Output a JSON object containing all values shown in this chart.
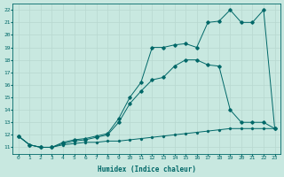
{
  "title": "",
  "xlabel": "Humidex (Indice chaleur)",
  "ylabel": "",
  "background_color": "#c8e8e0",
  "grid_color": "#b8d8d0",
  "line_color": "#006868",
  "xlim": [
    -0.5,
    23.5
  ],
  "ylim": [
    10.5,
    22.5
  ],
  "xticks": [
    0,
    1,
    2,
    3,
    4,
    5,
    6,
    7,
    8,
    9,
    10,
    11,
    12,
    13,
    14,
    15,
    16,
    17,
    18,
    19,
    20,
    21,
    22,
    23
  ],
  "yticks": [
    11,
    12,
    13,
    14,
    15,
    16,
    17,
    18,
    19,
    20,
    21,
    22
  ],
  "series1_x": [
    0,
    1,
    2,
    3,
    4,
    5,
    6,
    7,
    8,
    9,
    10,
    11,
    12,
    13,
    14,
    15,
    16,
    17,
    18,
    19,
    20,
    21,
    22,
    23
  ],
  "series1_y": [
    11.9,
    11.2,
    11.0,
    11.0,
    11.2,
    11.3,
    11.4,
    11.4,
    11.5,
    11.5,
    11.6,
    11.7,
    11.8,
    11.9,
    12.0,
    12.1,
    12.2,
    12.3,
    12.4,
    12.5,
    12.5,
    12.5,
    12.5,
    12.5
  ],
  "series2_x": [
    0,
    1,
    2,
    3,
    4,
    5,
    6,
    7,
    8,
    9,
    10,
    11,
    12,
    13,
    14,
    15,
    16,
    17,
    18,
    19,
    20,
    21,
    22,
    23
  ],
  "series2_y": [
    11.9,
    11.2,
    11.0,
    11.0,
    11.3,
    11.5,
    11.6,
    11.8,
    12.0,
    13.0,
    14.5,
    15.5,
    16.4,
    16.6,
    17.5,
    18.0,
    18.0,
    17.6,
    17.5,
    14.0,
    13.0,
    13.0,
    13.0,
    12.5
  ],
  "series3_x": [
    0,
    1,
    2,
    3,
    4,
    5,
    6,
    7,
    8,
    9,
    10,
    11,
    12,
    13,
    14,
    15,
    16,
    17,
    18,
    19,
    20,
    21,
    22,
    23
  ],
  "series3_y": [
    11.9,
    11.2,
    11.0,
    11.0,
    11.4,
    11.6,
    11.7,
    11.9,
    12.1,
    13.3,
    15.0,
    16.2,
    19.0,
    19.0,
    19.2,
    19.3,
    19.0,
    21.0,
    21.1,
    22.0,
    21.0,
    21.0,
    22.0,
    12.5
  ]
}
